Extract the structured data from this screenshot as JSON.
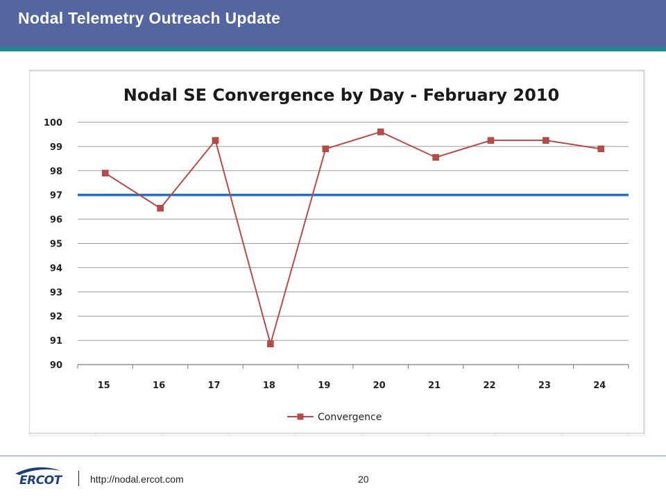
{
  "slide": {
    "title": "Nodal Telemetry Outreach Update",
    "footer_url": "http://nodal.ercot.com",
    "page_number": "20",
    "logo_text": "ERCOT"
  },
  "colors": {
    "header": "#5466a0",
    "header_stripe": "#1f8c8c",
    "series": "#b84a47",
    "threshold": "#1f6fd4"
  },
  "chart_data": {
    "type": "line",
    "title": "Nodal SE Convergence by Day - February 2010",
    "categories": [
      "15",
      "16",
      "17",
      "18",
      "19",
      "20",
      "21",
      "22",
      "23",
      "24"
    ],
    "series": [
      {
        "name": "Convergence",
        "values": [
          97.9,
          96.45,
          99.25,
          90.85,
          98.9,
          99.6,
          98.55,
          99.25,
          99.25,
          98.9
        ]
      }
    ],
    "reference_line": 97,
    "ylim": [
      90,
      100
    ],
    "yticks": [
      "90",
      "91",
      "92",
      "93",
      "94",
      "95",
      "96",
      "97",
      "98",
      "99",
      "100"
    ],
    "xlabel": "",
    "ylabel": "",
    "grid": true,
    "legend": "bottom"
  }
}
